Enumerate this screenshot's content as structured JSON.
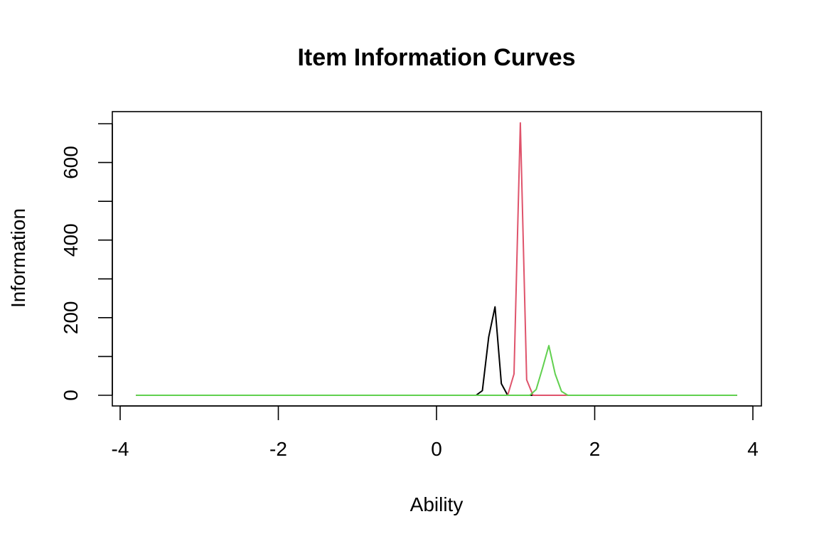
{
  "chart_data": {
    "type": "line",
    "title": "Item Information Curves",
    "xlabel": "Ability",
    "ylabel": "Information",
    "xlim": [
      -4,
      4
    ],
    "ylim": [
      0,
      700
    ],
    "x_ticks": [
      -4,
      -2,
      0,
      2,
      4
    ],
    "x_tick_labels": [
      "-4",
      "-2",
      "0",
      "2",
      "4"
    ],
    "y_ticks": [
      0,
      100,
      200,
      300,
      400,
      500,
      600,
      700
    ],
    "y_tick_labels": [
      "0",
      "",
      "200",
      "",
      "400",
      "",
      "600",
      ""
    ],
    "grid": false,
    "legend": "none",
    "series": [
      {
        "color": "#000000",
        "x": [
          -3.8,
          0.5,
          0.58,
          0.66,
          0.74,
          0.82,
          0.9,
          3.8
        ],
        "y": [
          0,
          0,
          12,
          150,
          228,
          30,
          0,
          0
        ]
      },
      {
        "color": "#DF536B",
        "x": [
          -3.8,
          0.9,
          0.98,
          1.06,
          1.14,
          1.22,
          3.8
        ],
        "y": [
          0,
          0,
          55,
          702,
          40,
          0,
          0
        ]
      },
      {
        "color": "#61D04F",
        "x": [
          -3.8,
          1.18,
          1.26,
          1.34,
          1.42,
          1.5,
          1.58,
          1.66,
          3.8
        ],
        "y": [
          0,
          0,
          15,
          70,
          128,
          55,
          10,
          0,
          0
        ]
      }
    ]
  }
}
